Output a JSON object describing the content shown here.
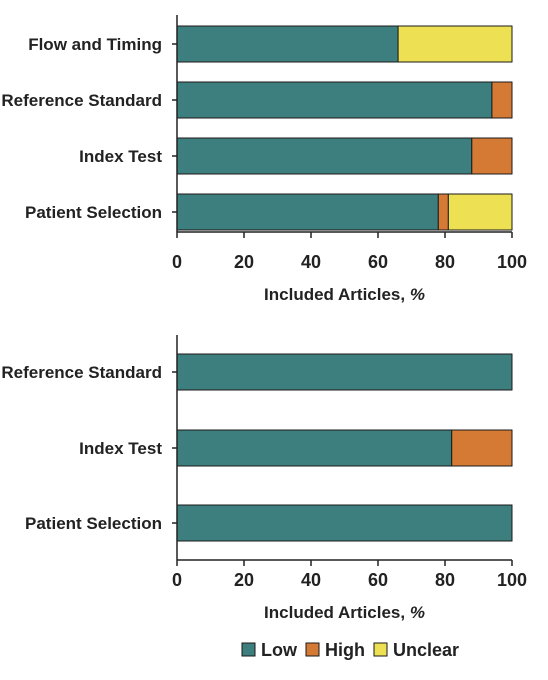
{
  "chart_data": [
    {
      "type": "bar",
      "orientation": "horizontal",
      "stacked": true,
      "categories": [
        "Flow and Timing",
        "Reference Standard",
        "Index Test",
        "Patient Selection"
      ],
      "series": [
        {
          "name": "Low",
          "values": [
            66,
            94,
            88,
            78
          ]
        },
        {
          "name": "High",
          "values": [
            0,
            6,
            12,
            3
          ]
        },
        {
          "name": "Unclear",
          "values": [
            34,
            0,
            0,
            19
          ]
        }
      ],
      "xlabel": "Included Articles, %",
      "xlim": [
        0,
        100
      ],
      "xticks": [
        0,
        20,
        40,
        60,
        80,
        100
      ],
      "grid": false
    },
    {
      "type": "bar",
      "orientation": "horizontal",
      "stacked": true,
      "categories": [
        "Reference Standard",
        "Index Test",
        "Patient Selection"
      ],
      "series": [
        {
          "name": "Low",
          "values": [
            100,
            82,
            100
          ]
        },
        {
          "name": "High",
          "values": [
            0,
            18,
            0
          ]
        },
        {
          "name": "Unclear",
          "values": [
            0,
            0,
            0
          ]
        }
      ],
      "xlabel": "Included Articles, %",
      "xlim": [
        0,
        100
      ],
      "xticks": [
        0,
        20,
        40,
        60,
        80,
        100
      ],
      "grid": false
    }
  ],
  "legend": {
    "placement": "bottom-right",
    "items": [
      {
        "label": "Low",
        "color": "#3d7f7f"
      },
      {
        "label": "High",
        "color": "#d47a35"
      },
      {
        "label": "Unclear",
        "color": "#ede053"
      }
    ]
  },
  "colors": {
    "Low": "#3d7f7f",
    "High": "#d47a35",
    "Unclear": "#ede053",
    "axis": "#222222",
    "bar_outline": "#1a1a1a"
  }
}
